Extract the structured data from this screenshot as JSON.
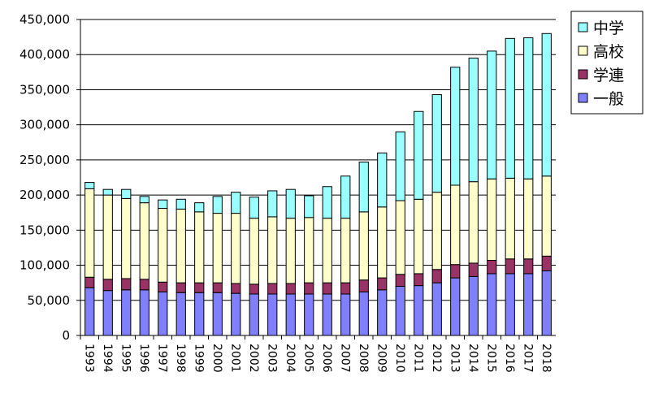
{
  "chart_data": {
    "type": "bar",
    "stacked": true,
    "title": "",
    "xlabel": "",
    "ylabel": "",
    "categories": [
      "1993",
      "1994",
      "1995",
      "1996",
      "1997",
      "1998",
      "1999",
      "2000",
      "2001",
      "2002",
      "2003",
      "2004",
      "2005",
      "2006",
      "2007",
      "2008",
      "2009",
      "2010",
      "2011",
      "2012",
      "2013",
      "2014",
      "2015",
      "2016",
      "2017",
      "2018"
    ],
    "ylim": [
      0,
      450000
    ],
    "yticks": [
      0,
      50000,
      100000,
      150000,
      200000,
      250000,
      300000,
      350000,
      400000,
      450000
    ],
    "ytick_labels": [
      "0",
      "50,000",
      "100,000",
      "150,000",
      "200,000",
      "250,000",
      "300,000",
      "350,000",
      "400,000",
      "450,000"
    ],
    "grid": true,
    "legend_position": "top-right",
    "series": [
      {
        "name": "一般",
        "color": "#8080ff",
        "values": [
          68000,
          64000,
          65000,
          65000,
          62000,
          61000,
          61000,
          61000,
          60000,
          59000,
          59000,
          59000,
          59000,
          59000,
          59000,
          62000,
          65000,
          70000,
          71000,
          75000,
          82000,
          84000,
          88000,
          88000,
          88000,
          92000
        ]
      },
      {
        "name": "学連",
        "color": "#993366",
        "values": [
          15000,
          16000,
          16000,
          15000,
          14000,
          14000,
          14000,
          14000,
          14000,
          14000,
          15000,
          15000,
          16000,
          16000,
          16000,
          17000,
          17000,
          17000,
          17000,
          19000,
          19000,
          19000,
          19000,
          21000,
          21000,
          21000
        ]
      },
      {
        "name": "高校",
        "color": "#ffffcc",
        "values": [
          126000,
          120000,
          114000,
          109000,
          105000,
          105000,
          101000,
          99000,
          100000,
          94000,
          95000,
          93000,
          93000,
          92000,
          92000,
          97000,
          101000,
          105000,
          106000,
          110000,
          113000,
          116000,
          116000,
          115000,
          114000,
          114000
        ]
      },
      {
        "name": "中学",
        "color": "#99ffff",
        "values": [
          9000,
          8000,
          13000,
          9000,
          12000,
          14000,
          13000,
          24000,
          30000,
          30000,
          37000,
          41000,
          31000,
          45000,
          60000,
          71000,
          77000,
          98000,
          125000,
          139000,
          168000,
          176000,
          182000,
          199000,
          201000,
          203000
        ]
      }
    ]
  }
}
